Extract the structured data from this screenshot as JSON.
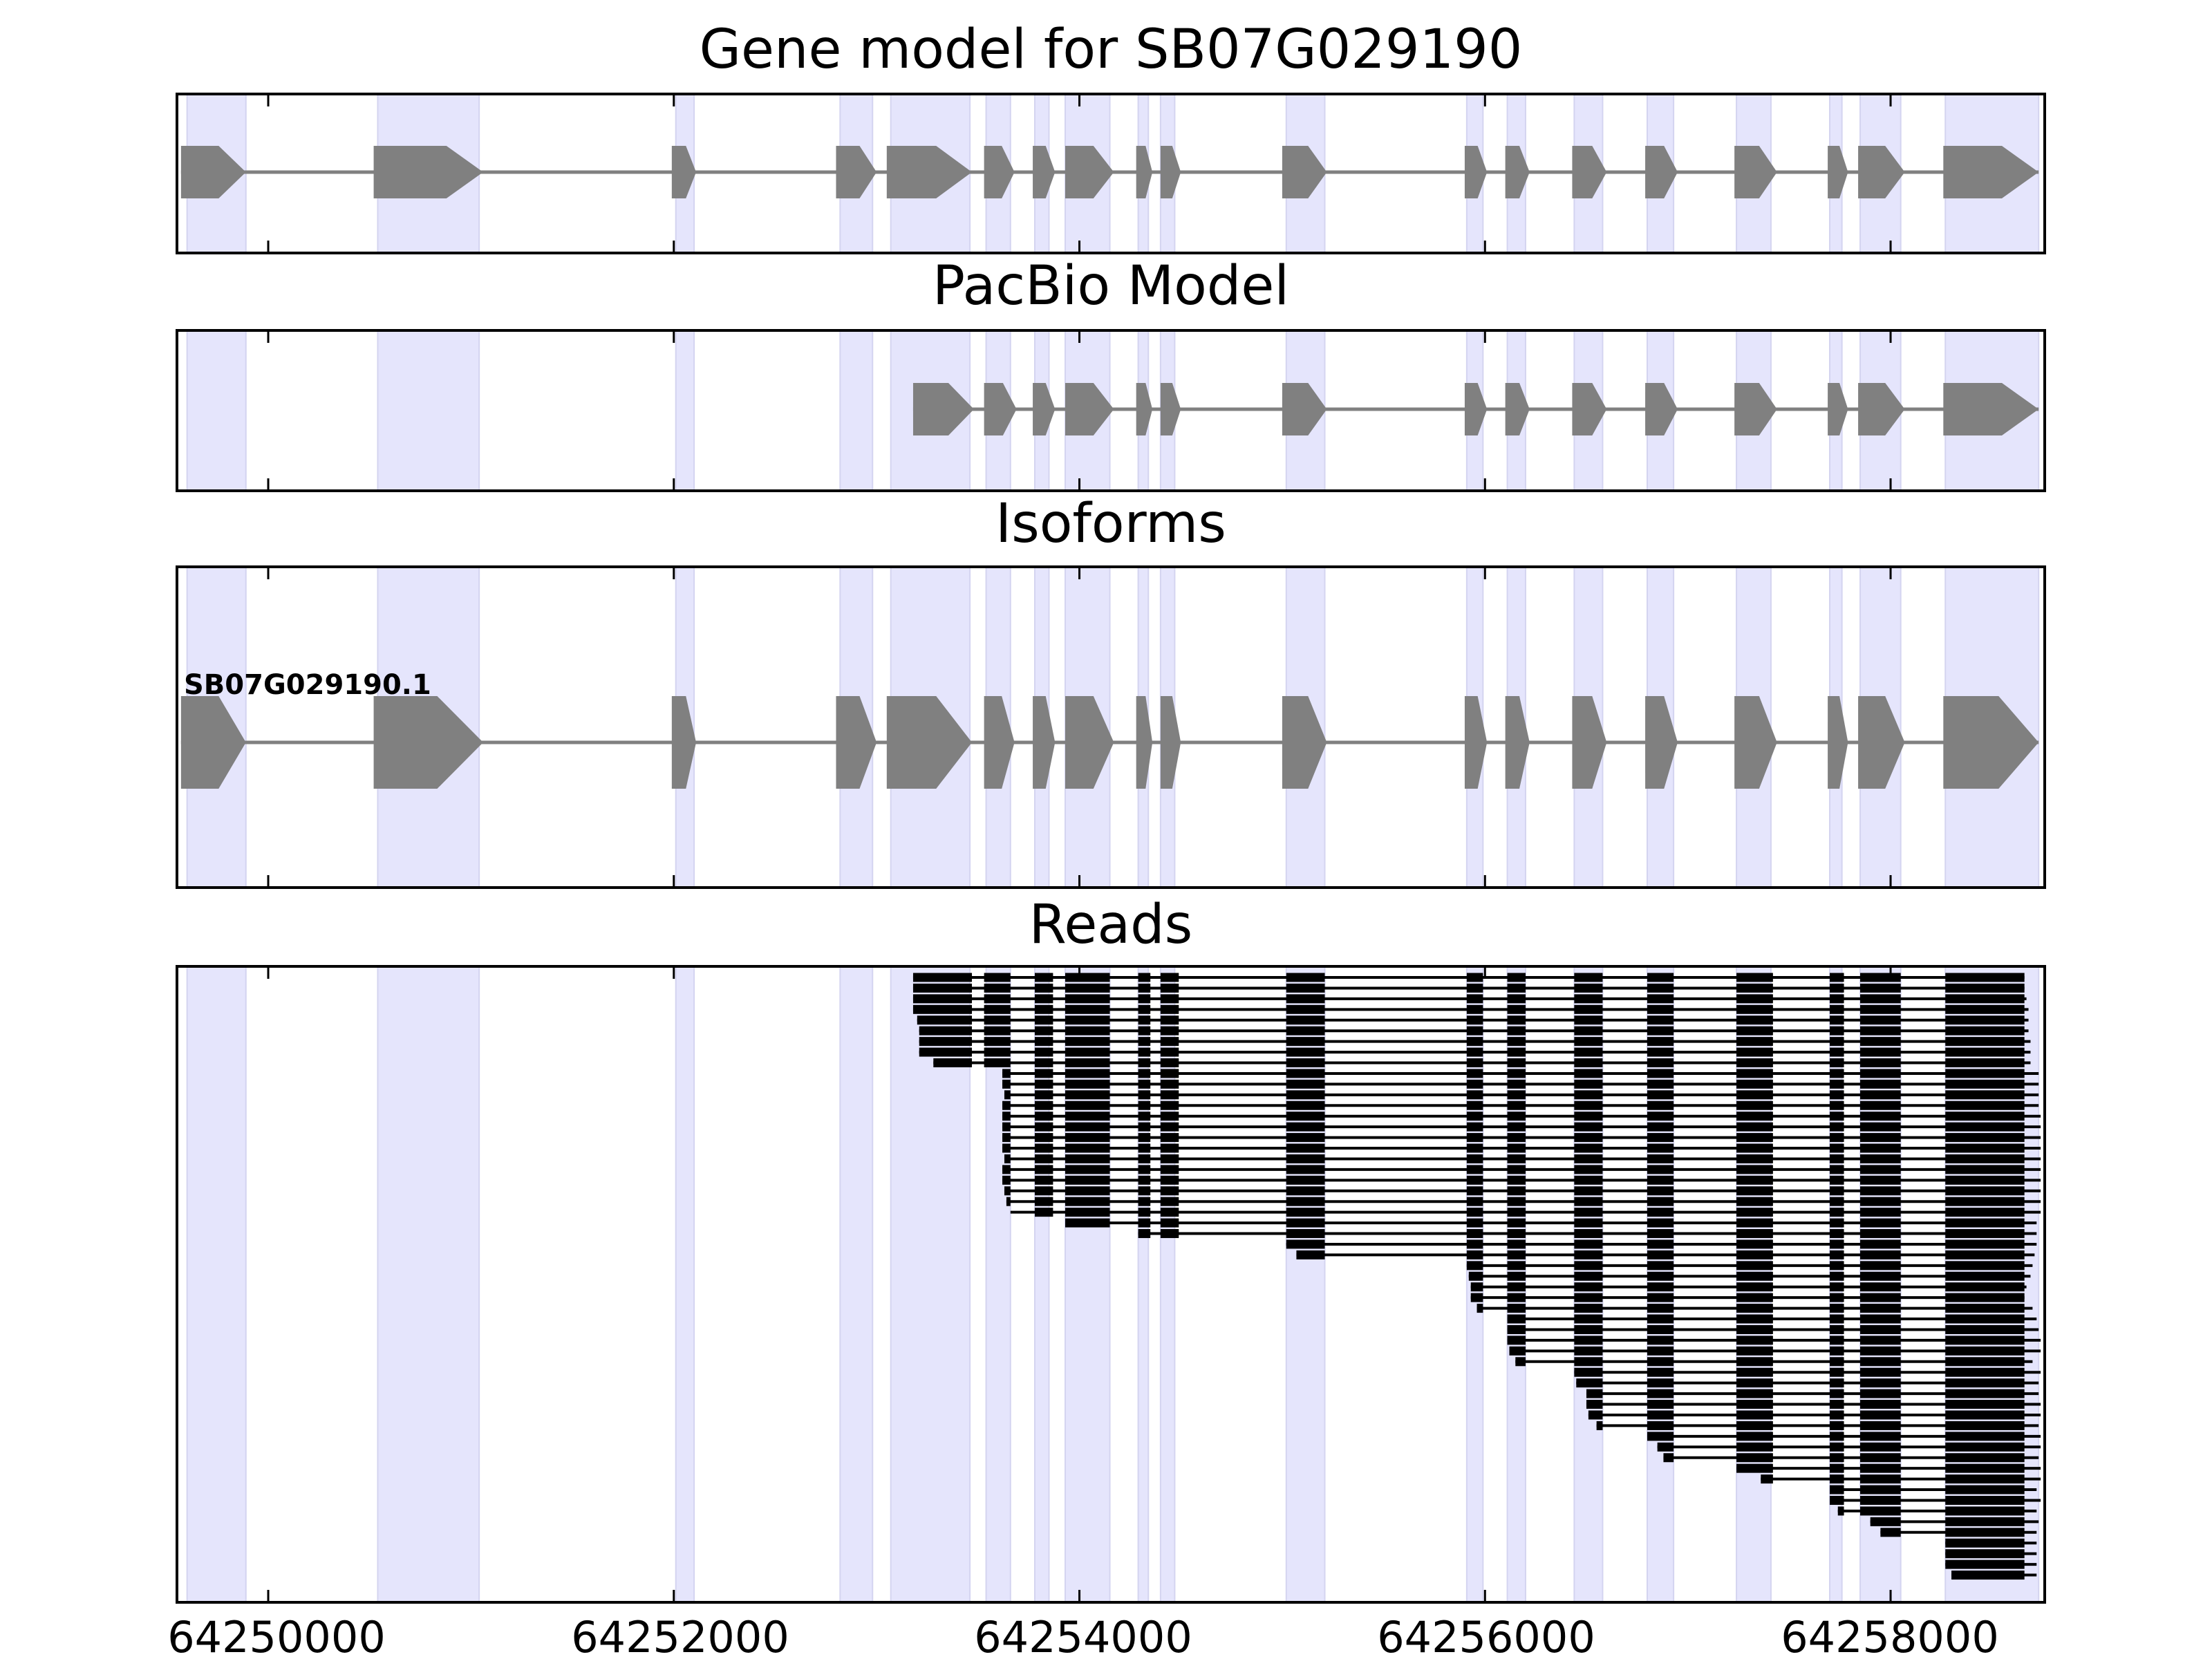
{
  "chart_data": {
    "type": "gene-track",
    "colors": {
      "exon_fill": "#808080",
      "intron_line": "#808080",
      "highlight_band": "#e5e5fc",
      "read_color": "#000000",
      "axis_color": "#000000"
    },
    "xlim": [
      64249550,
      64258760
    ],
    "x_ticks": [
      64250000,
      64252000,
      64254000,
      64256000,
      64258000
    ],
    "x_tick_labels": [
      "64250000",
      "64252000",
      "64254000",
      "64256000",
      "64258000"
    ],
    "highlight_regions": [
      [
        64249600,
        64249890
      ],
      [
        64250540,
        64251040
      ],
      [
        64252010,
        64252100
      ],
      [
        64252820,
        64252980
      ],
      [
        64253070,
        64253460
      ],
      [
        64253540,
        64253660
      ],
      [
        64253780,
        64253850
      ],
      [
        64253930,
        64254150
      ],
      [
        64254290,
        64254340
      ],
      [
        64254400,
        64254470
      ],
      [
        64255020,
        64255210
      ],
      [
        64255910,
        64255990
      ],
      [
        64256110,
        64256200
      ],
      [
        64256440,
        64256580
      ],
      [
        64256800,
        64256930
      ],
      [
        64257240,
        64257410
      ],
      [
        64257700,
        64257760
      ],
      [
        64257850,
        64258050
      ],
      [
        64258270,
        64258730
      ]
    ],
    "panels": [
      {
        "title": "Gene model for SB07G029190",
        "kind": "model",
        "exons": [
          [
            64249570,
            64249890
          ],
          [
            64250520,
            64251060
          ],
          [
            64251990,
            64252110
          ],
          [
            64252800,
            64253000
          ],
          [
            64253050,
            64253470
          ],
          [
            64253530,
            64253680
          ],
          [
            64253770,
            64253880
          ],
          [
            64253930,
            64254170
          ],
          [
            64254280,
            64254360
          ],
          [
            64254400,
            64254500
          ],
          [
            64255000,
            64255220
          ],
          [
            64255900,
            64256010
          ],
          [
            64256100,
            64256220
          ],
          [
            64256430,
            64256600
          ],
          [
            64256790,
            64256950
          ],
          [
            64257230,
            64257440
          ],
          [
            64257690,
            64257790
          ],
          [
            64257840,
            64258070
          ],
          [
            64258260,
            64258730
          ]
        ]
      },
      {
        "title": "PacBio Model",
        "kind": "model",
        "exons": [
          [
            64253180,
            64253480
          ],
          [
            64253530,
            64253690
          ],
          [
            64253770,
            64253880
          ],
          [
            64253930,
            64254170
          ],
          [
            64254280,
            64254360
          ],
          [
            64254400,
            64254500
          ],
          [
            64255000,
            64255220
          ],
          [
            64255900,
            64256010
          ],
          [
            64256100,
            64256220
          ],
          [
            64256430,
            64256600
          ],
          [
            64256790,
            64256950
          ],
          [
            64257230,
            64257440
          ],
          [
            64257690,
            64257790
          ],
          [
            64257840,
            64258070
          ],
          [
            64258260,
            64258730
          ]
        ]
      },
      {
        "title": "Isoforms",
        "kind": "isoforms",
        "isoforms": [
          {
            "name": "SB07G029190.1",
            "exons": [
              [
                64249570,
                64249890
              ],
              [
                64250520,
                64251060
              ],
              [
                64251990,
                64252110
              ],
              [
                64252800,
                64253000
              ],
              [
                64253050,
                64253470
              ],
              [
                64253530,
                64253680
              ],
              [
                64253770,
                64253880
              ],
              [
                64253930,
                64254170
              ],
              [
                64254280,
                64254360
              ],
              [
                64254400,
                64254500
              ],
              [
                64255000,
                64255220
              ],
              [
                64255900,
                64256010
              ],
              [
                64256100,
                64256220
              ],
              [
                64256430,
                64256600
              ],
              [
                64256790,
                64256950
              ],
              [
                64257230,
                64257440
              ],
              [
                64257690,
                64257790
              ],
              [
                64257840,
                64258070
              ],
              [
                64258260,
                64258730
              ]
            ]
          }
        ]
      },
      {
        "title": "Reads",
        "kind": "reads",
        "read_template_exons": [
          [
            64253180,
            64253470
          ],
          [
            64253530,
            64253660
          ],
          [
            64253780,
            64253870
          ],
          [
            64253930,
            64254150
          ],
          [
            64254290,
            64254350
          ],
          [
            64254400,
            64254490
          ],
          [
            64255020,
            64255210
          ],
          [
            64255910,
            64255990
          ],
          [
            64256110,
            64256200
          ],
          [
            64256440,
            64256580
          ],
          [
            64256800,
            64256930
          ],
          [
            64257240,
            64257420
          ],
          [
            64257700,
            64257770
          ],
          [
            64257850,
            64258050
          ],
          [
            64258270,
            64258660
          ]
        ],
        "reads": [
          {
            "start": 64253180,
            "end": 64258660
          },
          {
            "start": 64253180,
            "end": 64258660
          },
          {
            "start": 64253180,
            "end": 64258670
          },
          {
            "start": 64253180,
            "end": 64258680
          },
          {
            "start": 64253200,
            "end": 64258680
          },
          {
            "start": 64253210,
            "end": 64258680
          },
          {
            "start": 64253210,
            "end": 64258690
          },
          {
            "start": 64253210,
            "end": 64258690
          },
          {
            "start": 64253280,
            "end": 64258690
          },
          {
            "start": 64253620,
            "end": 64258730
          },
          {
            "start": 64253620,
            "end": 64258730
          },
          {
            "start": 64253630,
            "end": 64258730
          },
          {
            "start": 64253620,
            "end": 64258730
          },
          {
            "start": 64253620,
            "end": 64258740
          },
          {
            "start": 64253620,
            "end": 64258740
          },
          {
            "start": 64253620,
            "end": 64258740
          },
          {
            "start": 64253620,
            "end": 64258740
          },
          {
            "start": 64253630,
            "end": 64258740
          },
          {
            "start": 64253620,
            "end": 64258740
          },
          {
            "start": 64253620,
            "end": 64258740
          },
          {
            "start": 64253630,
            "end": 64258740
          },
          {
            "start": 64253640,
            "end": 64258740
          },
          {
            "start": 64253660,
            "end": 64258740
          },
          {
            "start": 64253930,
            "end": 64258720
          },
          {
            "start": 64254290,
            "end": 64258720
          },
          {
            "start": 64255020,
            "end": 64258720
          },
          {
            "start": 64255070,
            "end": 64258710
          },
          {
            "start": 64255910,
            "end": 64258700
          },
          {
            "start": 64255920,
            "end": 64258690
          },
          {
            "start": 64255930,
            "end": 64258670
          },
          {
            "start": 64255930,
            "end": 64258660
          },
          {
            "start": 64255960,
            "end": 64258700
          },
          {
            "start": 64256110,
            "end": 64258720
          },
          {
            "start": 64256110,
            "end": 64258730
          },
          {
            "start": 64256110,
            "end": 64258740
          },
          {
            "start": 64256120,
            "end": 64258740
          },
          {
            "start": 64256150,
            "end": 64258700
          },
          {
            "start": 64256440,
            "end": 64258740
          },
          {
            "start": 64256450,
            "end": 64258730
          },
          {
            "start": 64256500,
            "end": 64258730
          },
          {
            "start": 64256500,
            "end": 64258740
          },
          {
            "start": 64256510,
            "end": 64258740
          },
          {
            "start": 64256550,
            "end": 64258730
          },
          {
            "start": 64256800,
            "end": 64258740
          },
          {
            "start": 64256850,
            "end": 64258740
          },
          {
            "start": 64256880,
            "end": 64258730
          },
          {
            "start": 64257240,
            "end": 64258740
          },
          {
            "start": 64257360,
            "end": 64258740
          },
          {
            "start": 64257700,
            "end": 64258720
          },
          {
            "start": 64257700,
            "end": 64258740
          },
          {
            "start": 64257740,
            "end": 64258720
          },
          {
            "start": 64257900,
            "end": 64258730
          },
          {
            "start": 64257950,
            "end": 64258720
          },
          {
            "start": 64258270,
            "end": 64258720
          },
          {
            "start": 64258270,
            "end": 64258720
          },
          {
            "start": 64258270,
            "end": 64258720
          },
          {
            "start": 64258300,
            "end": 64258720
          }
        ]
      }
    ]
  }
}
